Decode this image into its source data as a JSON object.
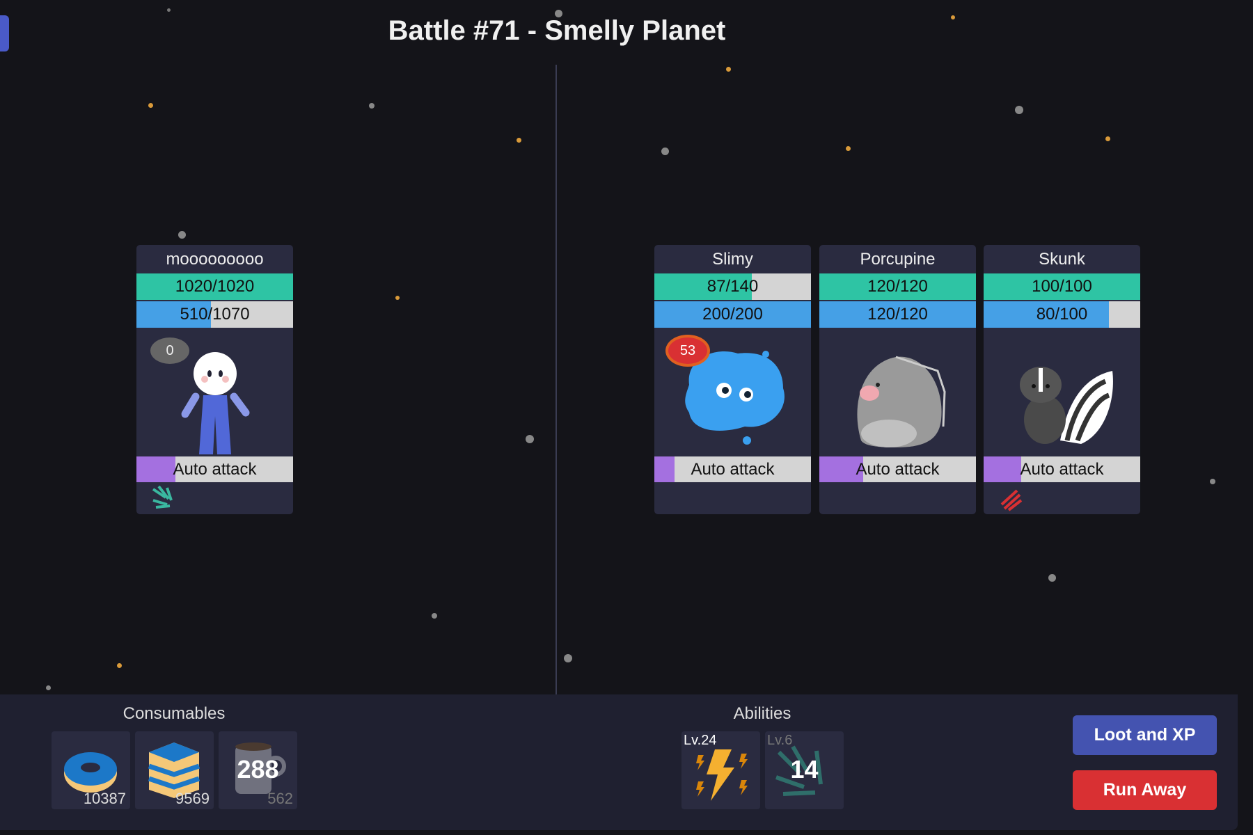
{
  "header": {
    "title": "Battle #71 - Smelly Planet"
  },
  "colors": {
    "hp": "#2ec4a4",
    "mp": "#45a0e6",
    "attack": "#a470e0",
    "loot_button": "#4453b0",
    "run_button": "#d93033"
  },
  "player": {
    "name": "mooooooooo",
    "hp": "1020/1020",
    "hp_fraction": 1.0,
    "mp": "510/1070",
    "mp_fraction": 0.477,
    "badge": "0",
    "attack_label": "Auto attack",
    "attack_progress": 0.25,
    "portrait": "blue-doll-icon",
    "status_icon": "teal-slash-icon"
  },
  "enemies": [
    {
      "name": "Slimy",
      "hp": "87/140",
      "hp_fraction": 0.62,
      "mp": "200/200",
      "mp_fraction": 1.0,
      "badge": "53",
      "attack_label": "Auto attack",
      "attack_progress": 0.13,
      "portrait": "slime-icon"
    },
    {
      "name": "Porcupine",
      "hp": "120/120",
      "hp_fraction": 1.0,
      "mp": "120/120",
      "mp_fraction": 1.0,
      "attack_label": "Auto attack",
      "attack_progress": 0.28,
      "portrait": "porcupine-icon"
    },
    {
      "name": "Skunk",
      "hp": "100/100",
      "hp_fraction": 1.0,
      "mp": "80/100",
      "mp_fraction": 0.8,
      "attack_label": "Auto attack",
      "attack_progress": 0.24,
      "portrait": "skunk-icon",
      "status_icon": "red-claw-icon"
    }
  ],
  "consumables": {
    "title": "Consumables",
    "items": [
      {
        "icon": "donut-icon",
        "count": "10387"
      },
      {
        "icon": "cake-icon",
        "count": "9569"
      },
      {
        "icon": "mug-icon",
        "cooldown": "288",
        "count": "562"
      }
    ]
  },
  "abilities": {
    "title": "Abilities",
    "items": [
      {
        "icon": "lightning-icon",
        "level": "Lv.24"
      },
      {
        "icon": "teal-slash-icon",
        "level": "Lv.6",
        "cooldown": "14"
      }
    ]
  },
  "actions": {
    "loot_label": "Loot and XP",
    "run_label": "Run Away"
  }
}
